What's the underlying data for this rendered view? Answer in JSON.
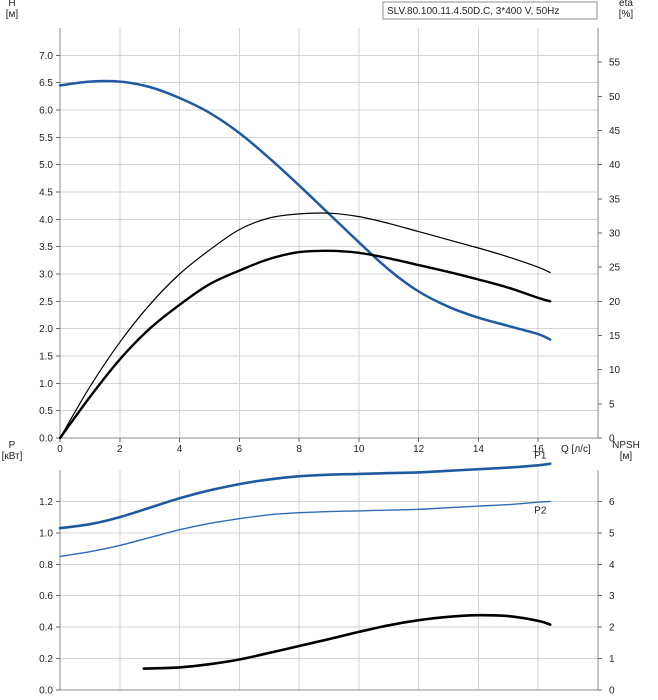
{
  "chart_data": [
    {
      "type": "line",
      "title": "SLV.80.100.11.4.50D.C, 3*400 V, 50Hz",
      "xlabel": "Q [л/с]",
      "ylabel": "H\n[м]",
      "y2label": "eta\n[%]",
      "xlim": [
        0,
        18
      ],
      "ylim": [
        0,
        7.5
      ],
      "y2lim": [
        0,
        60
      ],
      "xticks": [
        "0",
        "2",
        "4",
        "6",
        "8",
        "10",
        "12",
        "14",
        "16"
      ],
      "yticks": [
        "0.0",
        "0.5",
        "1.0",
        "1.5",
        "2.0",
        "2.5",
        "3.0",
        "3.5",
        "4.0",
        "4.5",
        "5.0",
        "5.5",
        "6.0",
        "6.5",
        "7.0"
      ],
      "y2ticks": [
        "0",
        "5",
        "10",
        "15",
        "20",
        "25",
        "30",
        "35",
        "40",
        "45",
        "50",
        "55"
      ],
      "grid": true,
      "colors": {
        "head": "#1f5aa0",
        "eta_thin": "#000000",
        "eta_thick": "#000000"
      },
      "series": [
        {
          "axis": "left",
          "x": [
            0,
            1,
            2,
            3,
            4,
            5,
            6,
            7,
            8,
            9,
            10,
            11,
            12,
            13,
            14,
            15,
            16,
            16.4
          ],
          "values": [
            6.45,
            6.52,
            6.52,
            6.42,
            6.22,
            5.95,
            5.58,
            5.12,
            4.62,
            4.1,
            3.58,
            3.08,
            2.68,
            2.4,
            2.2,
            2.05,
            1.9,
            1.8
          ]
        },
        {
          "axis": "right",
          "x": [
            0,
            1,
            2,
            3,
            4,
            5,
            6,
            7,
            8,
            9,
            10,
            11,
            12,
            13,
            14,
            15,
            16,
            16.4
          ],
          "values": [
            0,
            7.5,
            14,
            19.5,
            24,
            27.5,
            30.5,
            32.2,
            32.8,
            32.9,
            32.4,
            31.4,
            30.2,
            29,
            27.8,
            26.5,
            25,
            24.2
          ]
        },
        {
          "axis": "right",
          "x": [
            0,
            1,
            2,
            3,
            4,
            5,
            6,
            7,
            8,
            9,
            10,
            11,
            12,
            13,
            14,
            15,
            16,
            16.4
          ],
          "values": [
            0,
            6,
            11.5,
            16,
            19.5,
            22.5,
            24.5,
            26.2,
            27.2,
            27.4,
            27.1,
            26.3,
            25.3,
            24.3,
            23.2,
            22,
            20.5,
            20
          ]
        }
      ]
    },
    {
      "type": "line",
      "ylabel": "P\n[кВт]",
      "y2label": "NPSH\n[м]",
      "xlim": [
        0,
        18
      ],
      "ylim": [
        0,
        1.4
      ],
      "y2lim": [
        0,
        7
      ],
      "yticks": [
        "0.0",
        "0.2",
        "0.4",
        "0.6",
        "0.8",
        "1.0",
        "1.2"
      ],
      "y2ticks": [
        "0",
        "1",
        "2",
        "3",
        "4",
        "5",
        "6"
      ],
      "grid": true,
      "colors": {
        "p1": "#1f5aa0",
        "p2": "#2e6db4",
        "npsh": "#000000"
      },
      "series": [
        {
          "name": "P1",
          "axis": "left",
          "x": [
            0,
            1,
            2,
            3,
            4,
            5,
            6,
            7,
            8,
            9,
            10,
            11,
            12,
            13,
            14,
            15,
            16,
            16.4
          ],
          "values": [
            1.03,
            1.055,
            1.1,
            1.16,
            1.22,
            1.27,
            1.31,
            1.34,
            1.36,
            1.37,
            1.375,
            1.38,
            1.385,
            1.395,
            1.405,
            1.415,
            1.43,
            1.44
          ]
        },
        {
          "name": "P2",
          "axis": "left",
          "x": [
            0,
            1,
            2,
            3,
            4,
            5,
            6,
            7,
            8,
            9,
            10,
            11,
            12,
            13,
            14,
            15,
            16,
            16.4
          ],
          "values": [
            0.85,
            0.88,
            0.92,
            0.97,
            1.02,
            1.06,
            1.09,
            1.115,
            1.128,
            1.135,
            1.14,
            1.145,
            1.15,
            1.16,
            1.17,
            1.18,
            1.195,
            1.2
          ]
        },
        {
          "axis": "right",
          "x": [
            2.8,
            4,
            5,
            6,
            7,
            8,
            9,
            10,
            11,
            12,
            13,
            14,
            15,
            16,
            16.4
          ],
          "values": [
            0.68,
            0.72,
            0.82,
            0.97,
            1.18,
            1.4,
            1.62,
            1.85,
            2.06,
            2.22,
            2.33,
            2.38,
            2.35,
            2.2,
            2.08
          ]
        }
      ]
    }
  ]
}
